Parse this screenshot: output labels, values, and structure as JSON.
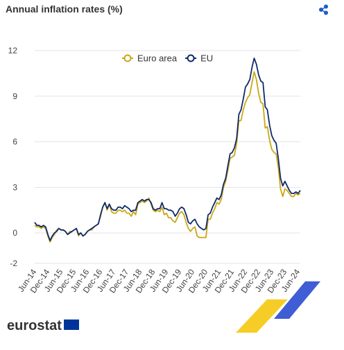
{
  "chart_data": {
    "type": "line",
    "title": "Annual inflation rates (%)",
    "categories": [
      "Jun-14",
      null,
      null,
      null,
      null,
      null,
      "Dec-14",
      null,
      null,
      null,
      null,
      null,
      "Jun-15",
      null,
      null,
      null,
      null,
      null,
      "Dec-15",
      null,
      null,
      null,
      null,
      null,
      "Jun-16",
      null,
      null,
      null,
      null,
      null,
      "Dec-16",
      null,
      null,
      null,
      null,
      null,
      "Jun-17",
      null,
      null,
      null,
      null,
      null,
      "Dec-17",
      null,
      null,
      null,
      null,
      null,
      "Jun-18",
      null,
      null,
      null,
      null,
      null,
      "Dec-18",
      null,
      null,
      null,
      null,
      null,
      "Jun-19",
      null,
      null,
      null,
      null,
      null,
      "Dec-19",
      null,
      null,
      null,
      null,
      null,
      "Jun-20",
      null,
      null,
      null,
      null,
      null,
      "Dec-20",
      null,
      null,
      null,
      null,
      null,
      "Jun-21",
      null,
      null,
      null,
      null,
      null,
      "Dec-21",
      null,
      null,
      null,
      null,
      null,
      "Jun-22",
      null,
      null,
      null,
      null,
      null,
      "Dec-22",
      null,
      null,
      null,
      null,
      null,
      "Jun-23",
      null,
      null,
      null,
      null,
      null,
      "Dec-23",
      null,
      null,
      null,
      null,
      null,
      "Jun-24",
      null
    ],
    "series": [
      {
        "name": "Euro area",
        "color": "#c9a716",
        "values": [
          0.5,
          0.4,
          0.4,
          0.3,
          0.4,
          0.3,
          -0.2,
          -0.6,
          -0.3,
          -0.1,
          0.2,
          0.3,
          0.2,
          0.2,
          0.1,
          -0.1,
          0.1,
          0.1,
          0.2,
          0.3,
          -0.2,
          0.0,
          -0.2,
          -0.1,
          0.1,
          0.2,
          0.2,
          0.4,
          0.5,
          0.6,
          1.1,
          1.7,
          2.0,
          1.5,
          1.9,
          1.4,
          1.3,
          1.3,
          1.5,
          1.5,
          1.4,
          1.5,
          1.3,
          1.3,
          1.1,
          1.4,
          1.2,
          1.9,
          2.0,
          2.1,
          2.0,
          2.1,
          2.3,
          1.9,
          1.5,
          1.4,
          1.5,
          1.4,
          1.7,
          1.2,
          1.3,
          1.0,
          1.0,
          0.8,
          0.7,
          1.0,
          1.3,
          1.4,
          1.2,
          0.7,
          0.3,
          0.1,
          0.3,
          0.4,
          -0.2,
          -0.3,
          -0.3,
          -0.3,
          -0.3,
          0.9,
          0.9,
          1.3,
          1.6,
          2.0,
          1.9,
          2.2,
          3.0,
          3.4,
          4.1,
          4.9,
          5.0,
          5.1,
          5.9,
          7.4,
          7.4,
          8.1,
          8.6,
          8.9,
          9.1,
          9.9,
          10.6,
          10.1,
          9.2,
          8.6,
          8.5,
          6.9,
          7.0,
          6.1,
          5.5,
          5.3,
          5.2,
          4.3,
          2.9,
          2.4,
          2.9,
          2.8,
          2.6,
          2.4,
          2.4,
          2.6,
          2.5,
          2.6
        ]
      },
      {
        "name": "EU",
        "color": "#0e2a6b",
        "values": [
          0.7,
          0.5,
          0.5,
          0.4,
          0.5,
          0.4,
          -0.1,
          -0.5,
          -0.2,
          0.0,
          0.1,
          0.3,
          0.2,
          0.2,
          0.1,
          -0.1,
          0.0,
          0.1,
          0.2,
          0.3,
          -0.1,
          0.0,
          -0.2,
          -0.1,
          0.1,
          0.2,
          0.3,
          0.4,
          0.5,
          0.6,
          1.2,
          1.7,
          2.0,
          1.6,
          1.9,
          1.6,
          1.5,
          1.5,
          1.7,
          1.7,
          1.6,
          1.8,
          1.7,
          1.6,
          1.4,
          1.5,
          1.5,
          2.0,
          2.1,
          2.2,
          2.1,
          2.2,
          2.2,
          2.0,
          1.6,
          1.5,
          1.6,
          1.6,
          2.0,
          1.6,
          1.6,
          1.5,
          1.5,
          1.4,
          1.1,
          1.3,
          1.6,
          1.7,
          1.6,
          1.2,
          0.7,
          0.6,
          0.8,
          0.9,
          0.6,
          0.4,
          0.3,
          0.2,
          0.3,
          1.2,
          1.3,
          1.7,
          2.0,
          2.3,
          2.2,
          2.5,
          3.2,
          3.6,
          4.4,
          5.2,
          5.3,
          5.6,
          6.2,
          7.8,
          8.1,
          8.8,
          9.6,
          9.8,
          10.1,
          10.9,
          11.5,
          11.1,
          10.4,
          10.0,
          9.9,
          8.3,
          8.1,
          7.1,
          6.4,
          6.1,
          5.9,
          4.9,
          3.6,
          3.1,
          3.4,
          3.1,
          2.8,
          2.6,
          2.6,
          2.7,
          2.6,
          2.8
        ]
      }
    ],
    "ylim": [
      -2,
      12
    ],
    "yticks": [
      -2,
      0,
      3,
      6,
      9,
      12
    ],
    "grid": true
  },
  "logo": "eurostat"
}
